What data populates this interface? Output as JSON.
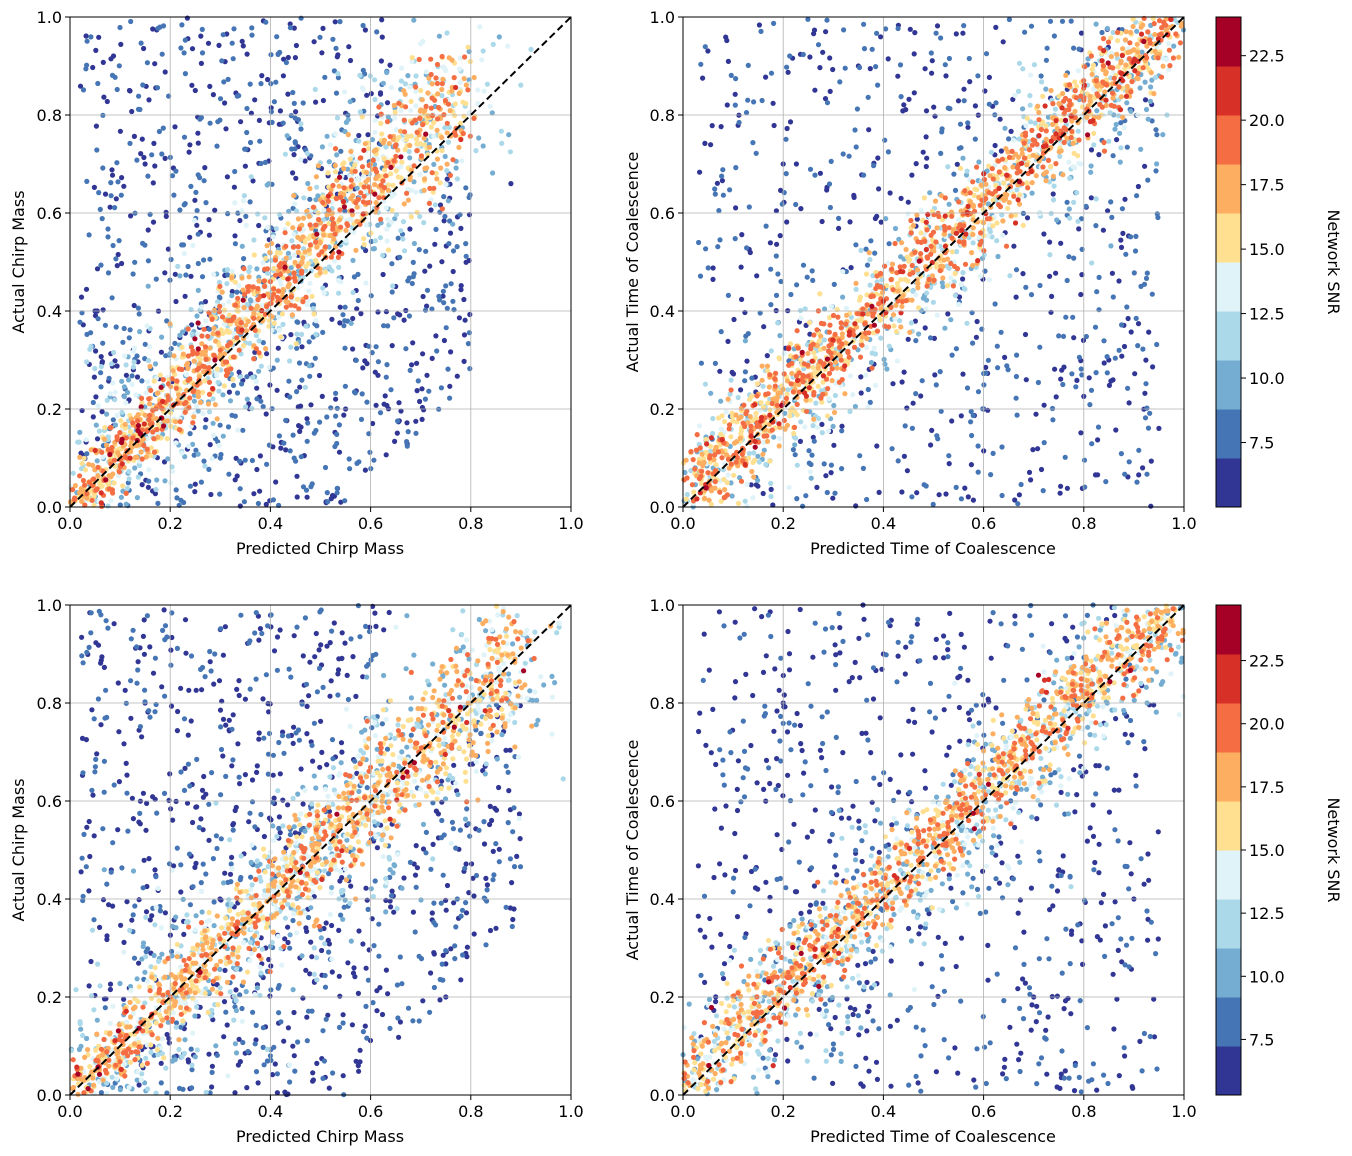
{
  "colors": {
    "snr_bands": [
      "#313695",
      "#4575b4",
      "#74add1",
      "#abd9e9",
      "#e0f3f8",
      "#fee090",
      "#fdae61",
      "#f46d43",
      "#d73027",
      "#a50026"
    ],
    "diagonal": "#000000",
    "grid": "#b0b0b0"
  },
  "colorbar_top": {
    "label": "Network SNR",
    "range": [
      5.0,
      24.0
    ],
    "tick_labels": [
      "7.5",
      "10.0",
      "12.5",
      "15.0",
      "17.5",
      "20.0",
      "22.5"
    ],
    "tick_values": [
      7.5,
      10.0,
      12.5,
      15.0,
      17.5,
      20.0,
      22.5
    ]
  },
  "colorbar_bottom": {
    "label": "Network SNR",
    "range": [
      5.3,
      24.7
    ],
    "tick_labels": [
      "7.5",
      "10.0",
      "12.5",
      "15.0",
      "17.5",
      "20.0",
      "22.5"
    ],
    "tick_values": [
      7.5,
      10.0,
      12.5,
      15.0,
      17.5,
      20.0,
      22.5
    ]
  },
  "chart_data": [
    {
      "type": "scatter",
      "xlabel": "Predicted Chirp Mass",
      "ylabel": "Actual Chirp Mass",
      "xlim": [
        0.0,
        1.0
      ],
      "ylim": [
        0.0,
        1.0
      ],
      "xticks": [
        "0.0",
        "0.2",
        "0.4",
        "0.6",
        "0.8",
        "1.0"
      ],
      "yticks": [
        "0.0",
        "0.2",
        "0.4",
        "0.6",
        "0.8",
        "1.0"
      ],
      "grid": true,
      "reference_line": "y = x (dashed)",
      "color_by": "Network SNR",
      "sample_points": [
        {
          "x": 0.1,
          "y": 0.1,
          "snr": 16.0
        },
        {
          "x": 0.2,
          "y": 0.22,
          "snr": 17.5
        },
        {
          "x": 0.3,
          "y": 0.32,
          "snr": 20.0
        },
        {
          "x": 0.4,
          "y": 0.46,
          "snr": 19.0
        },
        {
          "x": 0.5,
          "y": 0.58,
          "snr": 18.0
        },
        {
          "x": 0.6,
          "y": 0.7,
          "snr": 16.5
        },
        {
          "x": 0.7,
          "y": 0.85,
          "snr": 15.5
        },
        {
          "x": 0.78,
          "y": 0.75,
          "snr": 21.0
        },
        {
          "x": 0.15,
          "y": 0.7,
          "snr": 6.0
        },
        {
          "x": 0.25,
          "y": 0.85,
          "snr": 6.5
        },
        {
          "x": 0.3,
          "y": 0.1,
          "snr": 8.0
        },
        {
          "x": 0.55,
          "y": 0.2,
          "snr": 6.0
        },
        {
          "x": 0.05,
          "y": 0.4,
          "snr": 6.0
        },
        {
          "x": 0.65,
          "y": 0.45,
          "snr": 6.5
        },
        {
          "x": 0.88,
          "y": 0.66,
          "snr": 6.0
        }
      ]
    },
    {
      "type": "scatter",
      "xlabel": "Predicted Time of Coalescence",
      "ylabel": "Actual Time of Coalescence",
      "xlim": [
        0.0,
        1.0
      ],
      "ylim": [
        0.0,
        1.0
      ],
      "xticks": [
        "0.0",
        "0.2",
        "0.4",
        "0.6",
        "0.8",
        "1.0"
      ],
      "yticks": [
        "0.0",
        "0.2",
        "0.4",
        "0.6",
        "0.8",
        "1.0"
      ],
      "grid": true,
      "reference_line": "y = x (dashed)",
      "color_by": "Network SNR",
      "sample_points": [
        {
          "x": 0.05,
          "y": 0.07,
          "snr": 20.0
        },
        {
          "x": 0.2,
          "y": 0.24,
          "snr": 18.0
        },
        {
          "x": 0.4,
          "y": 0.42,
          "snr": 21.0
        },
        {
          "x": 0.6,
          "y": 0.62,
          "snr": 17.5
        },
        {
          "x": 0.8,
          "y": 0.83,
          "snr": 18.5
        },
        {
          "x": 0.92,
          "y": 0.95,
          "snr": 22.5
        },
        {
          "x": 0.2,
          "y": 0.7,
          "snr": 6.0
        },
        {
          "x": 0.35,
          "y": 0.9,
          "snr": 6.0
        },
        {
          "x": 0.6,
          "y": 0.2,
          "snr": 6.5
        },
        {
          "x": 0.85,
          "y": 0.3,
          "snr": 6.0
        }
      ]
    },
    {
      "type": "scatter",
      "xlabel": "Predicted Chirp Mass",
      "ylabel": "Actual Chirp Mass",
      "xlim": [
        0.0,
        1.0
      ],
      "ylim": [
        0.0,
        1.0
      ],
      "xticks": [
        "0.0",
        "0.2",
        "0.4",
        "0.6",
        "0.8",
        "1.0"
      ],
      "yticks": [
        "0.0",
        "0.2",
        "0.4",
        "0.6",
        "0.8",
        "1.0"
      ],
      "grid": true,
      "reference_line": "y = x (dashed)",
      "color_by": "Network SNR",
      "sample_points": [
        {
          "x": 0.05,
          "y": 0.05,
          "snr": 18.0
        },
        {
          "x": 0.2,
          "y": 0.2,
          "snr": 19.0
        },
        {
          "x": 0.4,
          "y": 0.4,
          "snr": 18.0
        },
        {
          "x": 0.6,
          "y": 0.58,
          "snr": 17.0
        },
        {
          "x": 0.8,
          "y": 0.8,
          "snr": 16.0
        },
        {
          "x": 0.85,
          "y": 0.93,
          "snr": 20.0
        },
        {
          "x": 0.15,
          "y": 0.8,
          "snr": 6.0
        },
        {
          "x": 0.3,
          "y": 0.95,
          "snr": 6.0
        },
        {
          "x": 0.4,
          "y": 0.08,
          "snr": 8.0
        },
        {
          "x": 0.75,
          "y": 0.2,
          "snr": 6.0
        }
      ]
    },
    {
      "type": "scatter",
      "xlabel": "Predicted Time of Coalescence",
      "ylabel": "Actual Time of Coalescence",
      "xlim": [
        0.0,
        1.0
      ],
      "ylim": [
        0.0,
        1.0
      ],
      "xticks": [
        "0.0",
        "0.2",
        "0.4",
        "0.6",
        "0.8",
        "1.0"
      ],
      "yticks": [
        "0.0",
        "0.2",
        "0.4",
        "0.6",
        "0.8",
        "1.0"
      ],
      "grid": true,
      "reference_line": "y = x (dashed)",
      "color_by": "Network SNR",
      "sample_points": [
        {
          "x": 0.05,
          "y": 0.06,
          "snr": 18.0
        },
        {
          "x": 0.18,
          "y": 0.06,
          "snr": 21.0
        },
        {
          "x": 0.4,
          "y": 0.42,
          "snr": 19.0
        },
        {
          "x": 0.6,
          "y": 0.62,
          "snr": 17.5
        },
        {
          "x": 0.8,
          "y": 0.82,
          "snr": 18.0
        },
        {
          "x": 0.95,
          "y": 0.97,
          "snr": 16.5
        },
        {
          "x": 0.2,
          "y": 0.8,
          "snr": 6.0
        },
        {
          "x": 0.4,
          "y": 0.9,
          "snr": 6.0
        },
        {
          "x": 0.7,
          "y": 0.2,
          "snr": 6.0
        },
        {
          "x": 0.9,
          "y": 0.4,
          "snr": 6.0
        }
      ]
    }
  ]
}
